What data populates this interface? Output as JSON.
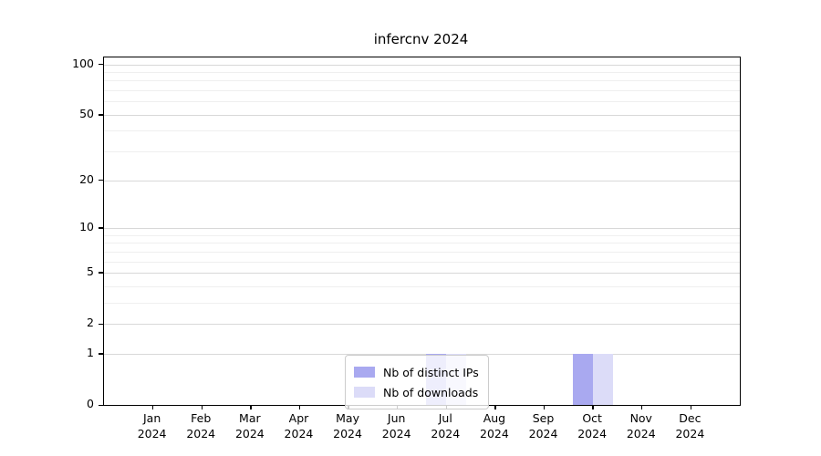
{
  "chart_data": {
    "type": "bar",
    "title": "infercnv 2024",
    "categories": [
      "Jan",
      "Feb",
      "Mar",
      "Apr",
      "May",
      "Jun",
      "Jul",
      "Aug",
      "Sep",
      "Oct",
      "Nov",
      "Dec"
    ],
    "x_sub_label": "2024",
    "series": [
      {
        "name": "Nb of distinct IPs",
        "color": "#a9a9f0",
        "values": [
          0,
          0,
          0,
          0,
          0,
          0,
          1,
          0,
          0,
          1,
          0,
          0
        ]
      },
      {
        "name": "Nb of downloads",
        "color": "#dcdcf8",
        "values": [
          0,
          0,
          0,
          0,
          0,
          0,
          1,
          0,
          0,
          1,
          0,
          0
        ]
      }
    ],
    "xlabel": "",
    "ylabel": "",
    "y_scale": "log10(1+x)",
    "y_major_ticks": [
      0,
      1,
      2,
      5,
      10,
      20,
      50,
      100
    ],
    "y_minor_gridlines": [
      3,
      4,
      6,
      7,
      8,
      9,
      30,
      40,
      60,
      70,
      80,
      90
    ],
    "ylim": [
      0,
      101
    ],
    "grid": "horizontal",
    "legend_position": "inside-bottom-center",
    "colors": {
      "bar_distinct_ips": "#a9a9f0",
      "bar_downloads": "#dcdcf8",
      "axis": "#000000",
      "grid_major": "#d8d8d8",
      "grid_minor": "#efefef",
      "legend_border": "#cccccc",
      "background": "#ffffff"
    }
  }
}
